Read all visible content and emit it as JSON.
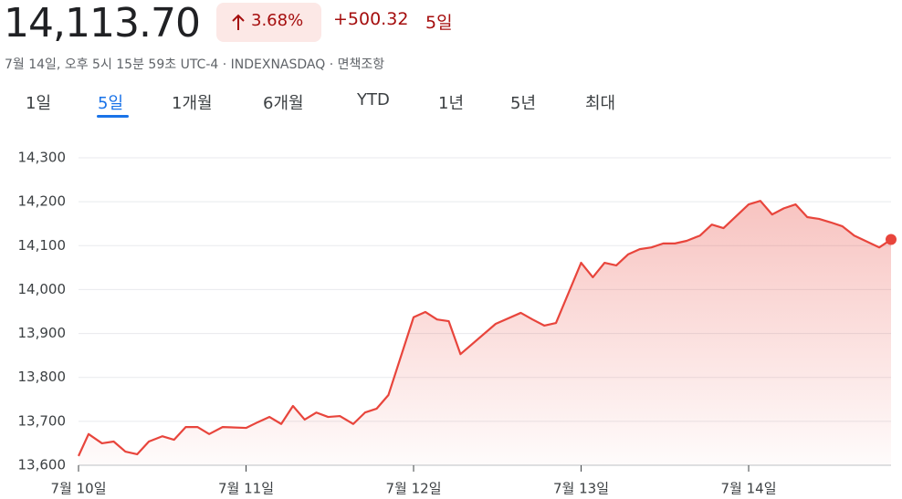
{
  "header": {
    "price": "14,113.70",
    "change_percent": "3.68%",
    "change": "+500.32",
    "period": "5일",
    "subtitle": "7월 14일, 오후 5시 15분 59초 UTC-4 · INDEXNASDAQ · 면책조항"
  },
  "tabs": [
    "1일",
    "5일",
    "1개월",
    "6개월",
    "YTD",
    "1년",
    "5년",
    "최대"
  ],
  "selected_tab": 1,
  "chart_data": {
    "type": "line",
    "color": "#e8453c",
    "grid": true,
    "x": [
      0,
      0.06,
      0.14,
      0.21,
      0.28,
      0.35,
      0.42,
      0.5,
      0.57,
      0.64,
      0.71,
      0.78,
      0.86,
      1.0,
      1.07,
      1.14,
      1.21,
      1.28,
      1.35,
      1.42,
      1.49,
      1.56,
      1.64,
      1.71,
      1.78,
      1.85,
      2.0,
      2.07,
      2.14,
      2.21,
      2.28,
      2.49,
      2.64,
      2.71,
      2.78,
      2.85,
      3.0,
      3.07,
      3.14,
      3.21,
      3.28,
      3.35,
      3.42,
      3.49,
      3.56,
      3.63,
      3.71,
      3.78,
      3.85,
      4.0,
      4.07,
      4.14,
      4.21,
      4.28,
      4.35,
      4.42,
      4.49,
      4.56,
      4.63,
      4.78,
      4.85
    ],
    "values": [
      13621,
      13671,
      13650,
      13654,
      13631,
      13625,
      13654,
      13666,
      13658,
      13687,
      13687,
      13671,
      13687,
      13685,
      13698,
      13710,
      13694,
      13735,
      13704,
      13720,
      13710,
      13712,
      13694,
      13720,
      13729,
      13760,
      13937,
      13949,
      13932,
      13928,
      13853,
      13922,
      13947,
      13932,
      13918,
      13924,
      14061,
      14028,
      14061,
      14055,
      14080,
      14092,
      14096,
      14105,
      14105,
      14111,
      14123,
      14148,
      14140,
      14194,
      14202,
      14171,
      14185,
      14194,
      14165,
      14161,
      14153,
      14144,
      14123,
      14096,
      14114
    ],
    "xlim": [
      0,
      4.85
    ],
    "xticks": [
      {
        "value": 0,
        "label": "7월 10일"
      },
      {
        "value": 1,
        "label": "7월 11일"
      },
      {
        "value": 2,
        "label": "7월 12일"
      },
      {
        "value": 3,
        "label": "7월 13일"
      },
      {
        "value": 4,
        "label": "7월 14일"
      }
    ],
    "ylim": [
      13600,
      14300
    ],
    "yticks": [
      {
        "value": 13600,
        "label": "13,600"
      },
      {
        "value": 13700,
        "label": "13,700"
      },
      {
        "value": 13800,
        "label": "13,800"
      },
      {
        "value": 13900,
        "label": "13,900"
      },
      {
        "value": 14000,
        "label": "14,000"
      },
      {
        "value": 14100,
        "label": "14,100"
      },
      {
        "value": 14200,
        "label": "14,200"
      },
      {
        "value": 14300,
        "label": "14,300"
      }
    ]
  }
}
